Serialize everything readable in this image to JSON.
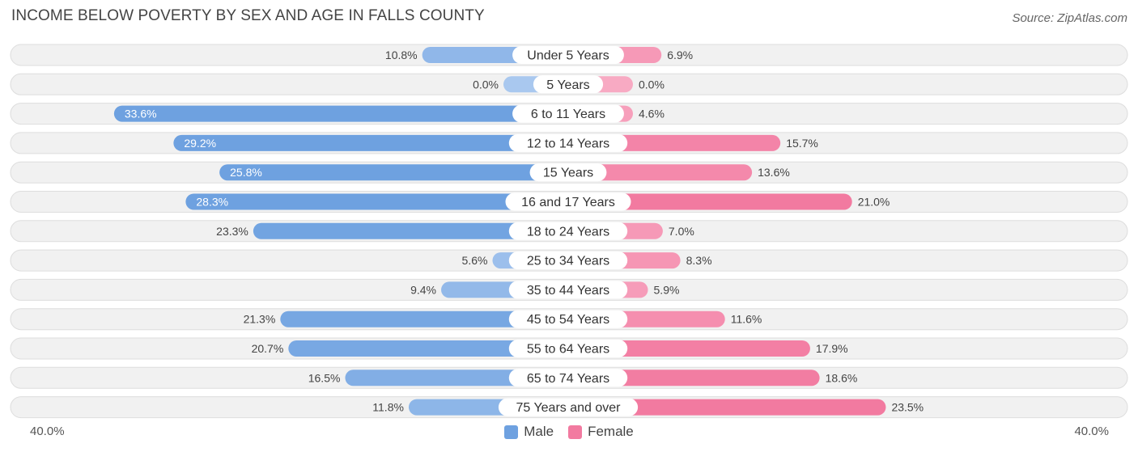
{
  "header": {
    "title": "INCOME BELOW POVERTY BY SEX AND AGE IN FALLS COUNTY",
    "source": "Source: ZipAtlas.com"
  },
  "colors": {
    "male_bar": "#6ea1e0",
    "male_bar_light": "#a9c8ef",
    "female_bar": "#f27aa0",
    "female_bar_light": "#f8aac3",
    "row_bg": "#f1f1f1",
    "row_border": "#dddddd"
  },
  "legend": {
    "male_label": "Male",
    "female_label": "Female"
  },
  "axis": {
    "left_label": "40.0%",
    "right_label": "40.0%"
  },
  "chart_data": {
    "type": "bar",
    "orientation": "horizontal-diverging",
    "title": "INCOME BELOW POVERTY BY SEX AND AGE IN FALLS COUNTY",
    "xlim": [
      -40,
      40
    ],
    "categories": [
      "Under 5 Years",
      "5 Years",
      "6 to 11 Years",
      "12 to 14 Years",
      "15 Years",
      "16 and 17 Years",
      "18 to 24 Years",
      "25 to 34 Years",
      "35 to 44 Years",
      "45 to 54 Years",
      "55 to 64 Years",
      "65 to 74 Years",
      "75 Years and over"
    ],
    "series": [
      {
        "name": "Male",
        "values": [
          10.8,
          0.0,
          33.6,
          29.2,
          25.8,
          28.3,
          23.3,
          5.6,
          9.4,
          21.3,
          20.7,
          16.5,
          11.8
        ],
        "labels": [
          "10.8%",
          "0.0%",
          "33.6%",
          "29.2%",
          "25.8%",
          "28.3%",
          "23.3%",
          "5.6%",
          "9.4%",
          "21.3%",
          "20.7%",
          "16.5%",
          "11.8%"
        ]
      },
      {
        "name": "Female",
        "values": [
          6.9,
          0.0,
          4.6,
          15.7,
          13.6,
          21.0,
          7.0,
          8.3,
          5.9,
          11.6,
          17.9,
          18.6,
          23.5
        ],
        "labels": [
          "6.9%",
          "0.0%",
          "4.6%",
          "15.7%",
          "13.6%",
          "21.0%",
          "7.0%",
          "8.3%",
          "5.9%",
          "11.6%",
          "17.9%",
          "18.6%",
          "23.5%"
        ]
      }
    ]
  }
}
